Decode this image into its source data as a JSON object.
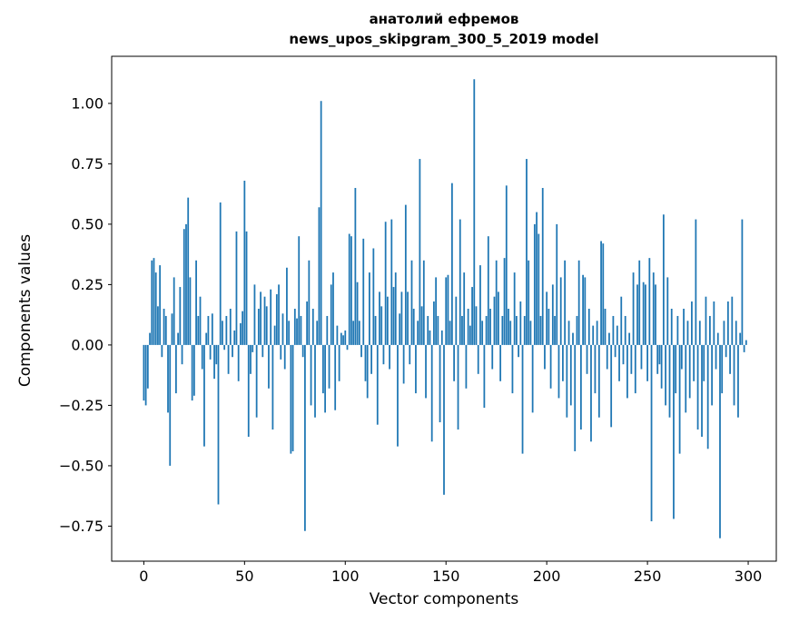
{
  "chart_data": {
    "type": "bar",
    "title_line1": "анатолий ефремов",
    "title_line2": "news_upos_skipgram_300_5_2019 model",
    "xlabel": "Vector components",
    "ylabel": "Components values",
    "bar_color": "#1f77b4",
    "background_color": "#ffffff",
    "xlim": [
      -15.95,
      313.95
    ],
    "ylim": [
      -0.895,
      1.195
    ],
    "xticks": [
      0,
      50,
      100,
      150,
      200,
      250,
      300
    ],
    "yticks": [
      {
        "v": 1.0,
        "label": "1.00"
      },
      {
        "v": 0.75,
        "label": "0.75"
      },
      {
        "v": 0.5,
        "label": "0.50"
      },
      {
        "v": 0.25,
        "label": "0.25"
      },
      {
        "v": 0.0,
        "label": "0.00"
      },
      {
        "v": -0.25,
        "label": "−0.25"
      },
      {
        "v": -0.5,
        "label": "−0.50"
      },
      {
        "v": -0.75,
        "label": "−0.75"
      }
    ],
    "grid": false,
    "legend": null,
    "x_is_index": true,
    "values": [
      -0.23,
      -0.25,
      -0.18,
      0.05,
      0.35,
      0.36,
      0.3,
      0.16,
      0.33,
      -0.05,
      0.15,
      0.12,
      -0.28,
      -0.5,
      0.13,
      0.28,
      -0.2,
      0.05,
      0.24,
      -0.08,
      0.48,
      0.5,
      0.61,
      0.28,
      -0.23,
      -0.21,
      0.35,
      0.12,
      0.2,
      -0.1,
      -0.42,
      0.05,
      0.12,
      -0.06,
      0.13,
      -0.14,
      -0.08,
      -0.66,
      0.59,
      0.1,
      -0.02,
      0.12,
      -0.12,
      0.15,
      -0.05,
      0.06,
      0.47,
      -0.15,
      0.09,
      0.14,
      0.68,
      0.47,
      -0.38,
      -0.12,
      -0.03,
      0.25,
      -0.3,
      0.15,
      0.22,
      -0.05,
      0.2,
      0.16,
      -0.18,
      0.23,
      -0.35,
      0.08,
      0.21,
      0.25,
      -0.06,
      0.13,
      -0.1,
      0.32,
      0.1,
      -0.45,
      -0.44,
      0.15,
      0.11,
      0.45,
      0.12,
      -0.05,
      -0.77,
      0.18,
      0.35,
      -0.25,
      0.15,
      -0.3,
      0.1,
      0.57,
      1.01,
      -0.2,
      -0.28,
      0.12,
      -0.18,
      0.25,
      0.3,
      -0.27,
      0.08,
      -0.15,
      0.05,
      0.04,
      0.06,
      -0.02,
      0.46,
      0.45,
      0.1,
      0.65,
      0.26,
      0.1,
      -0.05,
      0.44,
      -0.15,
      -0.22,
      0.3,
      -0.12,
      0.4,
      0.12,
      -0.33,
      0.22,
      0.16,
      -0.08,
      0.51,
      0.2,
      -0.1,
      0.52,
      0.24,
      0.3,
      -0.42,
      0.13,
      0.22,
      -0.16,
      0.58,
      0.22,
      -0.08,
      0.35,
      0.15,
      -0.2,
      0.1,
      0.77,
      0.16,
      0.35,
      -0.22,
      0.12,
      0.06,
      -0.4,
      0.18,
      0.28,
      0.12,
      -0.32,
      0.06,
      -0.62,
      0.28,
      0.29,
      0.1,
      0.67,
      -0.15,
      0.2,
      -0.35,
      0.52,
      0.12,
      0.3,
      -0.18,
      0.15,
      0.08,
      0.24,
      1.1,
      0.16,
      -0.12,
      0.33,
      0.1,
      -0.26,
      0.12,
      0.45,
      0.15,
      -0.1,
      0.2,
      0.35,
      0.22,
      -0.15,
      0.12,
      0.36,
      0.66,
      0.15,
      0.1,
      -0.2,
      0.3,
      0.12,
      -0.05,
      0.18,
      -0.45,
      0.12,
      0.77,
      0.35,
      0.1,
      -0.28,
      0.5,
      0.55,
      0.46,
      0.12,
      0.65,
      -0.1,
      0.22,
      0.15,
      -0.18,
      0.25,
      0.12,
      0.5,
      -0.22,
      0.28,
      -0.15,
      0.35,
      -0.3,
      0.1,
      -0.25,
      0.05,
      -0.44,
      0.12,
      0.35,
      -0.35,
      0.29,
      0.28,
      -0.12,
      0.15,
      -0.4,
      0.08,
      -0.2,
      0.1,
      -0.3,
      0.43,
      0.42,
      0.15,
      -0.1,
      0.05,
      -0.34,
      0.12,
      -0.05,
      0.08,
      -0.15,
      0.2,
      -0.08,
      0.12,
      -0.22,
      0.05,
      -0.12,
      0.3,
      -0.2,
      0.25,
      0.35,
      -0.1,
      0.26,
      0.25,
      -0.15,
      0.36,
      -0.73,
      0.3,
      0.25,
      -0.12,
      -0.08,
      -0.18,
      0.54,
      -0.25,
      0.28,
      -0.3,
      0.15,
      -0.72,
      -0.2,
      0.12,
      -0.45,
      -0.1,
      0.15,
      -0.28,
      0.1,
      -0.22,
      0.18,
      -0.15,
      0.52,
      -0.35,
      0.1,
      -0.38,
      -0.15,
      0.2,
      -0.43,
      0.12,
      -0.25,
      0.18,
      -0.1,
      0.05,
      -0.8,
      -0.2,
      0.1,
      -0.05,
      0.18,
      -0.12,
      0.2,
      -0.25,
      0.1,
      -0.3,
      0.05,
      0.52,
      -0.03,
      0.02
    ]
  }
}
